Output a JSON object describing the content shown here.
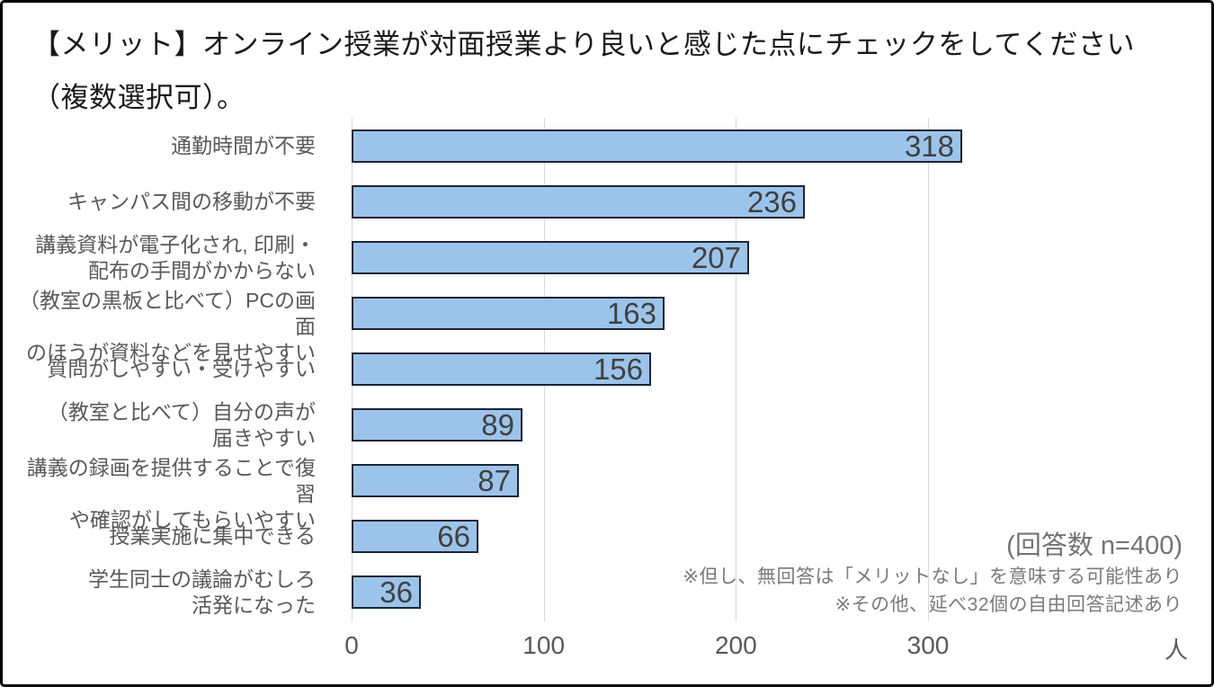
{
  "title": "【メリット】オンライン授業が対面授業より良いと感じた点にチェックをしてください\n（複数選択可）。",
  "chart_data": {
    "type": "bar",
    "orientation": "horizontal",
    "title": "【メリット】オンライン授業が対面授業より良いと感じた点にチェックをしてください（複数選択可）。",
    "categories": [
      "通勤時間が不要",
      "キャンパス間の移動が不要",
      "講義資料が電子化され, 印刷・\n配布の手間がかからない",
      "（教室の黒板と比べて）PCの画面\nのほうが資料などを見せやすい",
      "質問がしやすい・受けやすい",
      "（教室と比べて）自分の声が\n届きやすい",
      "講義の録画を提供することで復習\nや確認がしてもらいやすい",
      "授業実施に集中できる",
      "学生同士の議論がむしろ\n活発になった"
    ],
    "values": [
      318,
      236,
      207,
      163,
      156,
      89,
      87,
      66,
      36
    ],
    "x_ticks": [
      0,
      100,
      200,
      300
    ],
    "xlim": [
      0,
      431
    ],
    "x_unit": "人",
    "grid": true,
    "legend": "none",
    "bar_color": "#9cc4eb",
    "bar_border_color": "#1b2433",
    "grid_color": "#d9d9d9",
    "value_label_color": "#404040",
    "category_label_color": "#595959"
  },
  "annotations": {
    "respondents": "(回答数 n=400)",
    "note1": "※但し、無回答は「メリットなし」を意味する可能性あり",
    "note2": "※その他、延べ32個の自由回答記述あり"
  }
}
